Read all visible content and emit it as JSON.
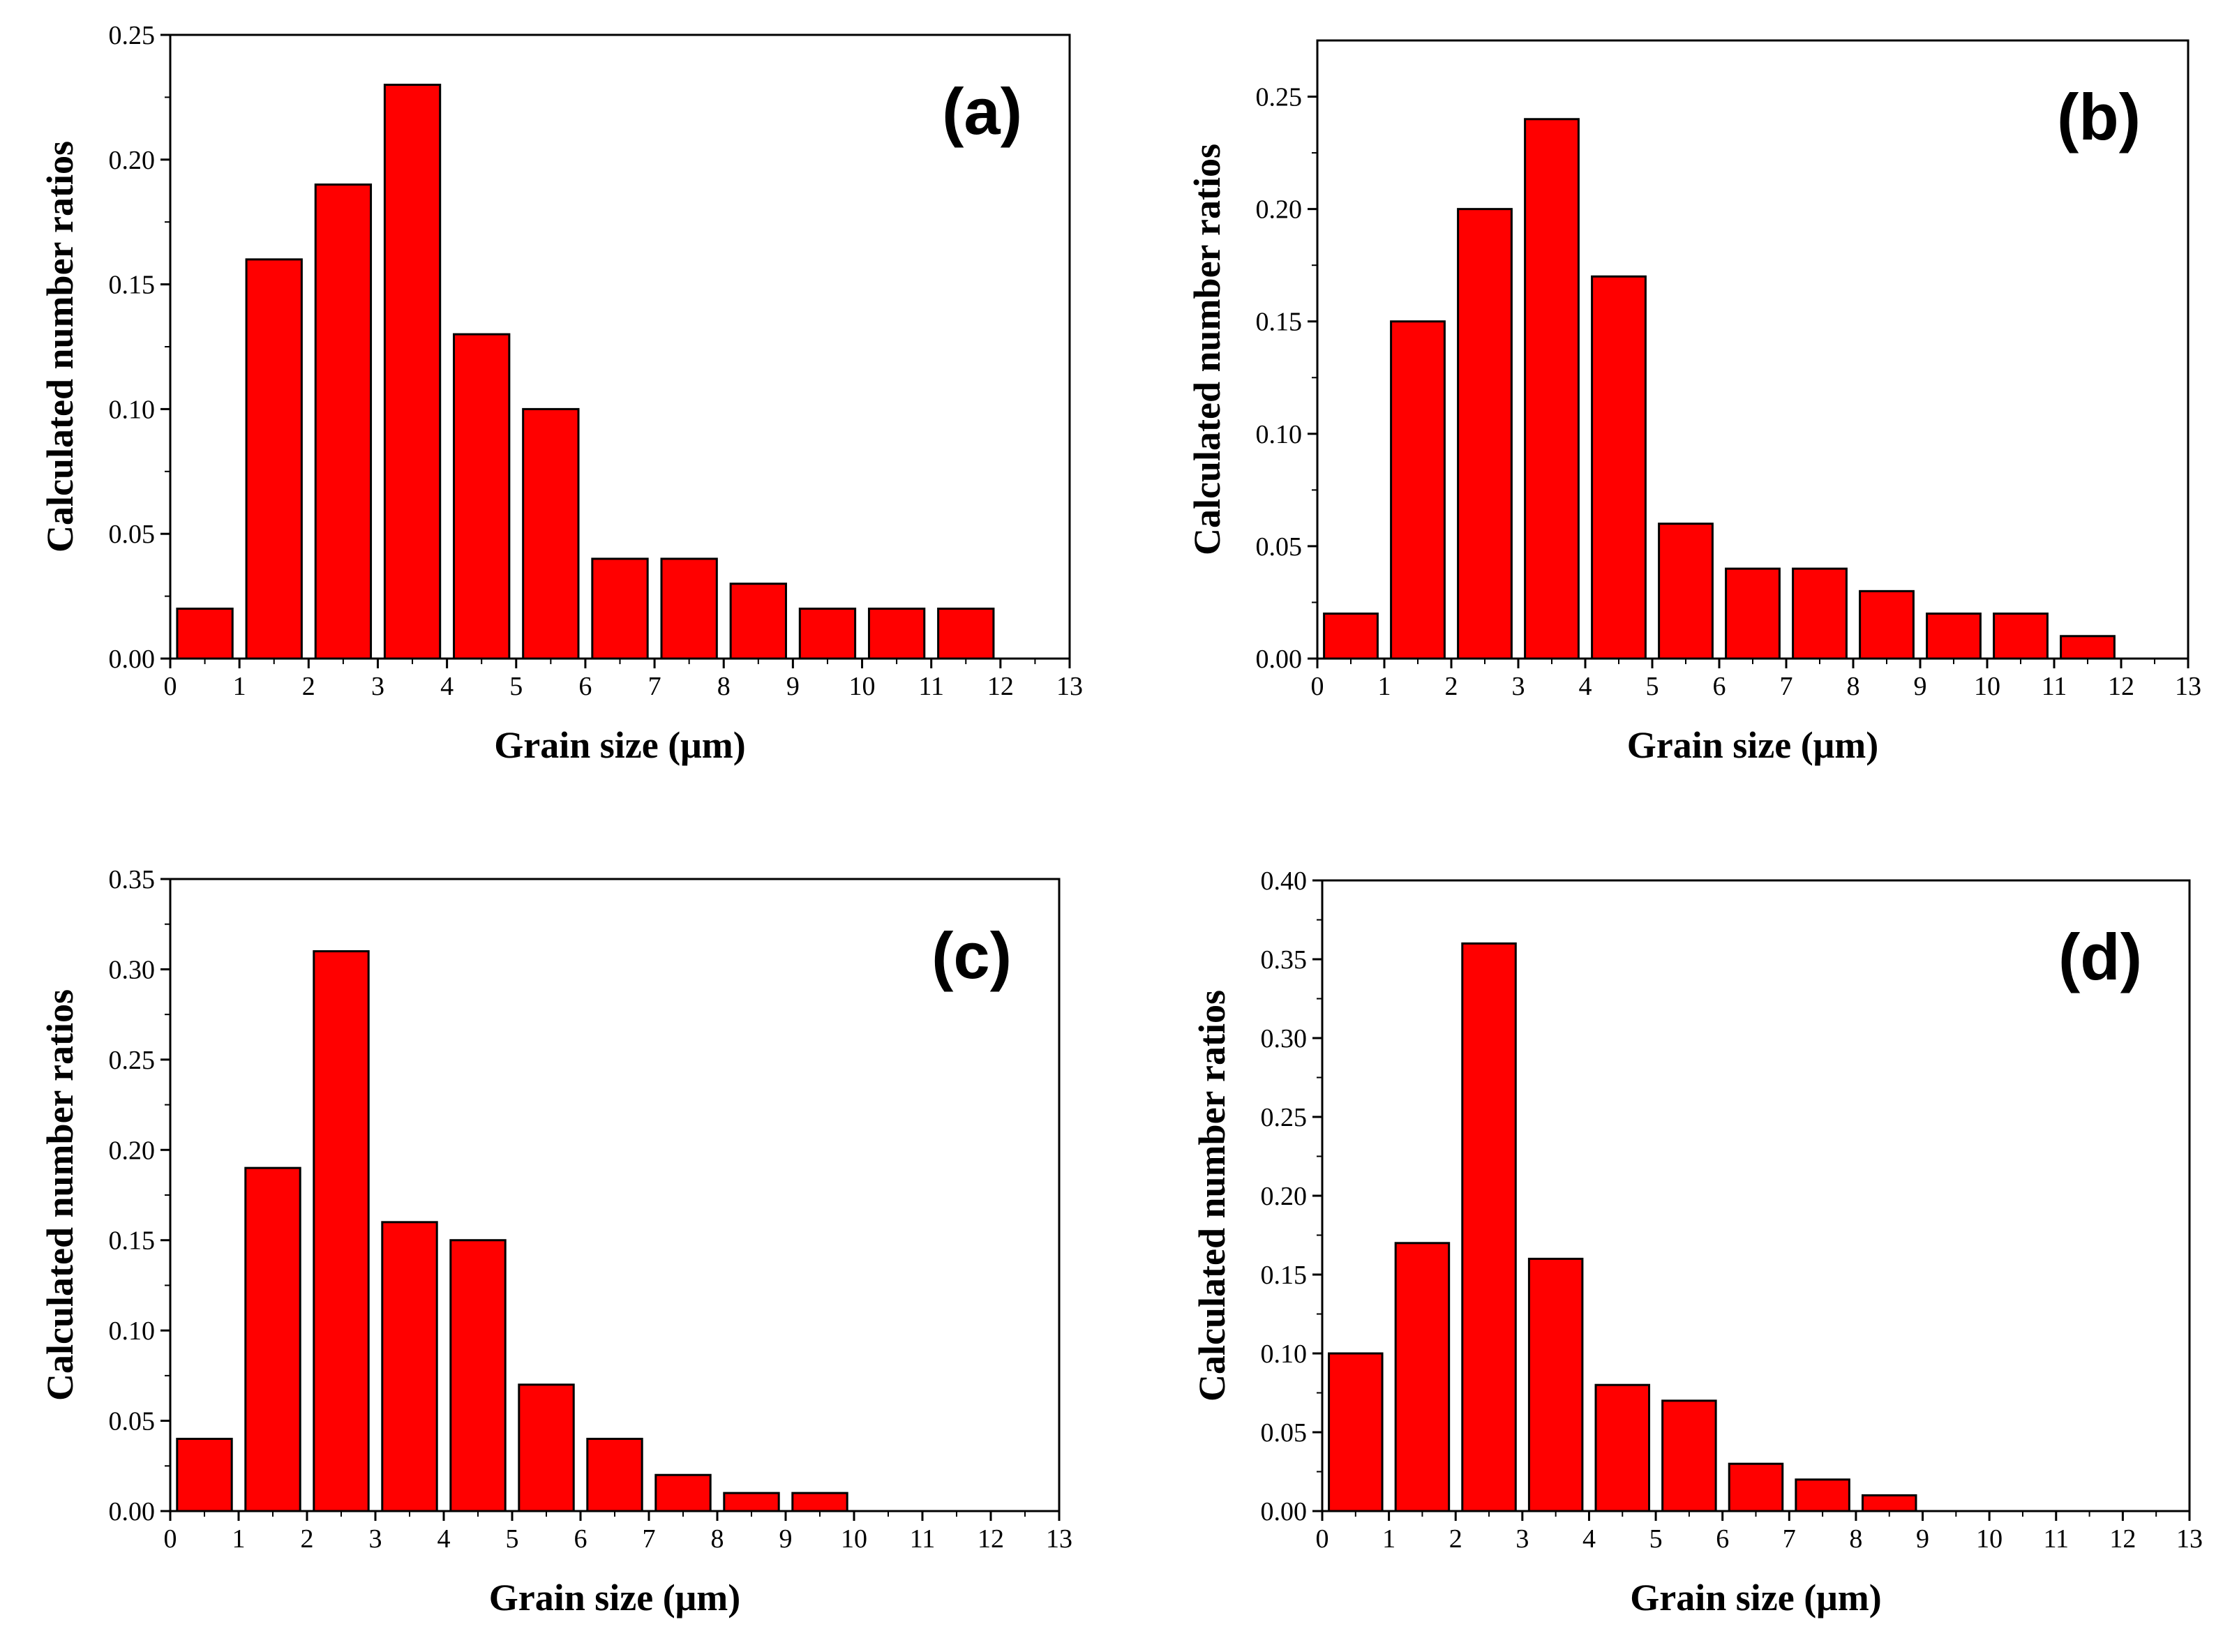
{
  "figure": {
    "ylabel": "Calculated number ratios",
    "xlabel": "Grain size (μm)",
    "bar_color": "#ff0000",
    "edge_color": "#000000"
  },
  "chart_data": [
    {
      "type": "bar",
      "panel": "(a)",
      "x": [
        0.5,
        1.5,
        2.5,
        3.5,
        4.5,
        5.5,
        6.5,
        7.5,
        8.5,
        9.5,
        10.5,
        11.5
      ],
      "values": [
        0.02,
        0.16,
        0.19,
        0.23,
        0.13,
        0.1,
        0.04,
        0.04,
        0.03,
        0.02,
        0.02,
        0.02
      ],
      "xlabel": "Grain size (μm)",
      "ylabel": "Calculated number ratios",
      "xlim": [
        0,
        13
      ],
      "ylim": [
        0,
        0.25
      ],
      "xticks": [
        "0",
        "1",
        "2",
        "3",
        "4",
        "5",
        "6",
        "7",
        "8",
        "9",
        "10",
        "11",
        "12",
        "13"
      ],
      "yticks": [
        "0.00",
        "0.05",
        "0.10",
        "0.15",
        "0.20",
        "0.25"
      ]
    },
    {
      "type": "bar",
      "panel": "(b)",
      "x": [
        0.5,
        1.5,
        2.5,
        3.5,
        4.5,
        5.5,
        6.5,
        7.5,
        8.5,
        9.5,
        10.5,
        11.5
      ],
      "values": [
        0.02,
        0.15,
        0.2,
        0.24,
        0.17,
        0.06,
        0.04,
        0.04,
        0.03,
        0.02,
        0.02,
        0.01
      ],
      "xlabel": "Grain size (μm)",
      "ylabel": "Calculated number ratios",
      "xlim": [
        0,
        13
      ],
      "ylim": [
        0,
        0.275
      ],
      "xticks": [
        "0",
        "1",
        "2",
        "3",
        "4",
        "5",
        "6",
        "7",
        "8",
        "9",
        "10",
        "11",
        "12",
        "13"
      ],
      "yticks": [
        "0.00",
        "0.05",
        "0.10",
        "0.15",
        "0.20",
        "0.25"
      ]
    },
    {
      "type": "bar",
      "panel": "(c)",
      "x": [
        0.5,
        1.5,
        2.5,
        3.5,
        4.5,
        5.5,
        6.5,
        7.5,
        8.5,
        9.5
      ],
      "values": [
        0.04,
        0.19,
        0.31,
        0.16,
        0.15,
        0.07,
        0.04,
        0.02,
        0.01,
        0.01
      ],
      "xlabel": "Grain size (μm)",
      "ylabel": "Calculated number ratios",
      "xlim": [
        0,
        13
      ],
      "ylim": [
        0,
        0.35
      ],
      "xticks": [
        "0",
        "1",
        "2",
        "3",
        "4",
        "5",
        "6",
        "7",
        "8",
        "9",
        "10",
        "11",
        "12",
        "13"
      ],
      "yticks": [
        "0.00",
        "0.05",
        "0.10",
        "0.15",
        "0.20",
        "0.25",
        "0.30",
        "0.35"
      ]
    },
    {
      "type": "bar",
      "panel": "(d)",
      "x": [
        0.5,
        1.5,
        2.5,
        3.5,
        4.5,
        5.5,
        6.5,
        7.5,
        8.5
      ],
      "values": [
        0.1,
        0.17,
        0.36,
        0.16,
        0.08,
        0.07,
        0.03,
        0.02,
        0.01
      ],
      "xlabel": "Grain size (μm)",
      "ylabel": "Calculated number ratios",
      "xlim": [
        0,
        13
      ],
      "ylim": [
        0,
        0.4
      ],
      "xticks": [
        "0",
        "1",
        "2",
        "3",
        "4",
        "5",
        "6",
        "7",
        "8",
        "9",
        "10",
        "11",
        "12",
        "13"
      ],
      "yticks": [
        "0.00",
        "0.05",
        "0.10",
        "0.15",
        "0.20",
        "0.25",
        "0.30",
        "0.35",
        "0.40"
      ]
    }
  ]
}
